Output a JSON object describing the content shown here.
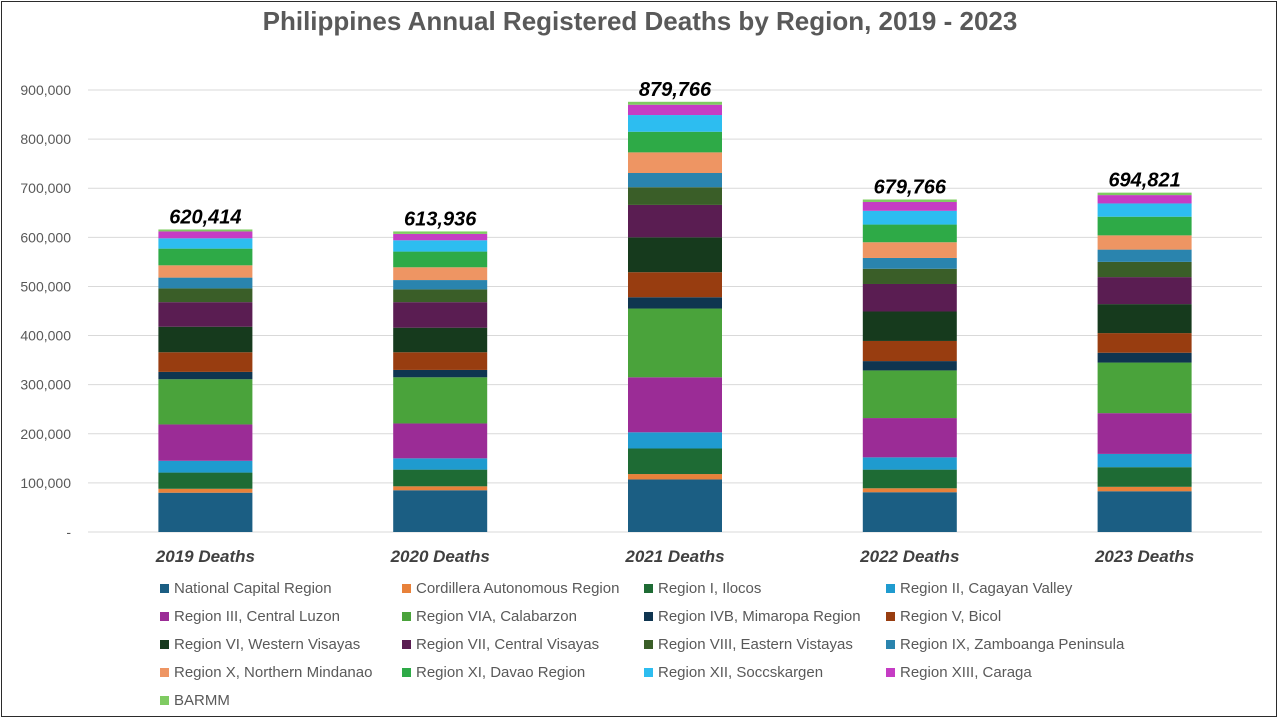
{
  "chart_data": {
    "type": "bar",
    "stacked": true,
    "title": "Philippines Annual Registered Deaths by Region, 2019 - 2023",
    "categories": [
      "2019 Deaths",
      "2020 Deaths",
      "2021 Deaths",
      "2022 Deaths",
      "2023 Deaths"
    ],
    "totals": [
      620414,
      613936,
      879766,
      679766,
      694821
    ],
    "total_labels": [
      "620,414",
      "613,936",
      "879,766",
      "679,766",
      "694,821"
    ],
    "ylim": [
      0,
      900000
    ],
    "yticks": [
      0,
      100000,
      200000,
      300000,
      400000,
      500000,
      600000,
      700000,
      800000,
      900000
    ],
    "ytick_labels": [
      "-",
      "100,000",
      "200,000",
      "300,000",
      "400,000",
      "500,000",
      "600,000",
      "700,000",
      "800,000",
      "900,000"
    ],
    "grid": true,
    "legend_position": "bottom",
    "series": [
      {
        "name": "National Capital Region",
        "color": "#1b5e83",
        "values": [
          80000,
          85000,
          107000,
          81000,
          83000
        ]
      },
      {
        "name": "Cordillera Autonomous Region",
        "color": "#e8813a",
        "values": [
          8000,
          8000,
          11000,
          8000,
          9000
        ]
      },
      {
        "name": "Region I, Ilocos",
        "color": "#1e6b34",
        "values": [
          33000,
          34000,
          52000,
          38000,
          40000
        ]
      },
      {
        "name": "Region II, Cagayan Valley",
        "color": "#1f9bcf",
        "values": [
          24000,
          23000,
          33000,
          25000,
          27000
        ]
      },
      {
        "name": "Region III, Central Luzon",
        "color": "#9b2c96",
        "values": [
          74000,
          71000,
          112000,
          80000,
          83000
        ]
      },
      {
        "name": "Region VIA, Calabarzon",
        "color": "#4aa33b",
        "values": [
          92000,
          94000,
          140000,
          97000,
          103000
        ]
      },
      {
        "name": "Region IVB, Mimaropa Region",
        "color": "#0f3550",
        "values": [
          15000,
          15000,
          23000,
          19000,
          20000
        ]
      },
      {
        "name": "Region V, Bicol",
        "color": "#983d10",
        "values": [
          40000,
          36000,
          51000,
          41000,
          40000
        ]
      },
      {
        "name": "Region VI, Western Visayas",
        "color": "#163a1d",
        "values": [
          52000,
          50000,
          71000,
          60000,
          59000
        ]
      },
      {
        "name": "Region VII, Central Visayas",
        "color": "#5a1d52",
        "values": [
          50000,
          52000,
          66000,
          56000,
          55000
        ]
      },
      {
        "name": "Region VIII, Eastern Vistayas",
        "color": "#3a5e28",
        "values": [
          28000,
          26000,
          36000,
          31000,
          31000
        ]
      },
      {
        "name": "Region IX, Zamboanga Peninsula",
        "color": "#2a84ae",
        "values": [
          22000,
          19000,
          29000,
          22000,
          25000
        ]
      },
      {
        "name": "Region X, Northern Mindanao",
        "color": "#ee9563",
        "values": [
          25000,
          26000,
          42000,
          32000,
          29000
        ]
      },
      {
        "name": "Region XI, Davao Region",
        "color": "#2eaa47",
        "values": [
          34000,
          32000,
          42000,
          36000,
          38000
        ]
      },
      {
        "name": "Region XII, Soccskargen",
        "color": "#2dbdf0",
        "values": [
          21000,
          23000,
          34000,
          28000,
          27000
        ]
      },
      {
        "name": "Region XIII, Caraga",
        "color": "#c53cc4",
        "values": [
          14000,
          13000,
          21000,
          18000,
          17000
        ]
      },
      {
        "name": "BARMM",
        "color": "#7fcb62",
        "values": [
          4000,
          5000,
          6000,
          5000,
          5000
        ]
      }
    ]
  }
}
